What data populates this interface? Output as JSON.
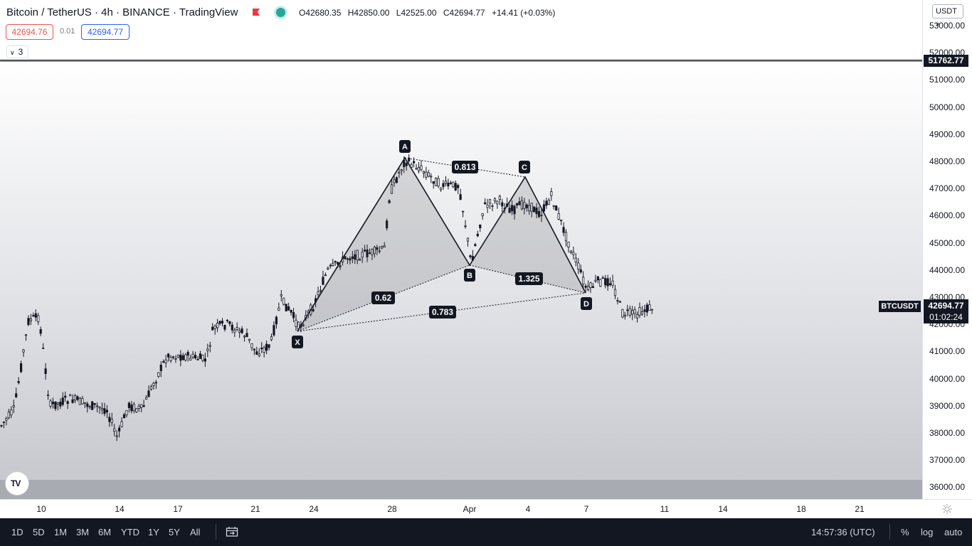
{
  "header": {
    "title": "Bitcoin / TetherUS · 4h · BINANCE · TradingView",
    "ohlc": {
      "open": "O42680.35",
      "high": "H42850.00",
      "low": "L42525.00",
      "close": "C42694.77",
      "change": "+14.41 (+0.03%)"
    },
    "bid": "42694.76",
    "spread": "0.01",
    "ask": "42694.77",
    "indicators_count": "3"
  },
  "price_axis": {
    "currency": "USDT",
    "labels": [
      "53000.00",
      "52000.00",
      "51000.00",
      "50000.00",
      "49000.00",
      "48000.00",
      "47000.00",
      "46000.00",
      "45000.00",
      "44000.00",
      "43000.00",
      "42000.00",
      "41000.00",
      "40000.00",
      "39000.00",
      "38000.00",
      "37000.00",
      "36000.00"
    ],
    "high_marker": "51762.77",
    "current_price": "42694.77",
    "countdown": "01:02:24",
    "symbol": "BTCUSDT"
  },
  "pattern": {
    "points": [
      "X",
      "A",
      "B",
      "C",
      "D"
    ],
    "ratios": {
      "xb": "0.62",
      "ac": "0.813",
      "bd": "1.325",
      "xd": "0.783"
    }
  },
  "time_axis": {
    "labels": [
      "10",
      "14",
      "17",
      "21",
      "24",
      "28",
      "Apr",
      "4",
      "7",
      "11",
      "14",
      "18",
      "21"
    ]
  },
  "bottom_bar": {
    "ranges": [
      "1D",
      "5D",
      "1M",
      "3M",
      "6M",
      "YTD",
      "1Y",
      "5Y",
      "All"
    ],
    "clock": "14:57:36 (UTC)",
    "percent": "%",
    "log": "log",
    "auto": "auto"
  },
  "colors": {
    "accent": "#2962ff",
    "bid": "#ef5350",
    "live": "#26a69a",
    "dark": "#131722"
  },
  "icons": [
    "flag-icon",
    "live-dot-icon",
    "chevron-down-icon",
    "tradingview-logo-icon",
    "settings-icon",
    "date-range-icon"
  ]
}
